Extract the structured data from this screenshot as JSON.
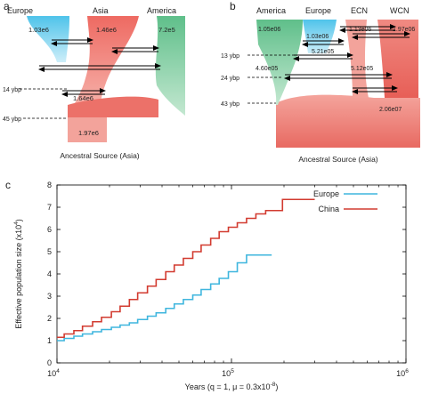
{
  "panels": {
    "a": {
      "letter": "a",
      "populations": [
        "Europe",
        "Asia",
        "America"
      ],
      "sizes": [
        "1.03e6",
        "1.46e6",
        "7.2e5",
        "1.64e6",
        "1.97e6"
      ],
      "times": [
        "14 ybp",
        "45 ybp"
      ],
      "source": "Ancestral Source (Asia)"
    },
    "b": {
      "letter": "b",
      "populations": [
        "America",
        "Europe",
        "ECN",
        "WCN"
      ],
      "sizes": [
        "1.05e06",
        "1.03e06",
        "1.13e06",
        "1.97e06",
        "5.21e05",
        "4.60e05",
        "5.12e05",
        "2.06e07"
      ],
      "times": [
        "13 ybp",
        "24 ybp",
        "43 ybp"
      ],
      "source": "Ancestral Source (Asia)"
    },
    "c": {
      "letter": "c"
    }
  },
  "colors": {
    "europe": "#5bc8ea",
    "asia": "#ef6b63",
    "america": "#5fbf8a",
    "china_line": "#d23b30",
    "europe_line": "#3fb6de"
  },
  "chart_data": {
    "type": "line",
    "title": "",
    "xlabel": "Years (q = 1, μ = 0.3x10",
    "xlabel_sup": "-8",
    "xlabel_tail": ")",
    "ylabel": "Effective population size (x10",
    "ylabel_sup": "4",
    "ylabel_tail": ")",
    "x_scale": "log",
    "xlim": [
      10000,
      1000000
    ],
    "ylim": [
      0,
      8
    ],
    "x_ticks": [
      {
        "value": 10000,
        "base": "10",
        "exp": "4"
      },
      {
        "value": 100000,
        "base": "10",
        "exp": "5"
      },
      {
        "value": 1000000,
        "base": "10",
        "exp": "6"
      }
    ],
    "y_ticks": [
      0,
      1,
      2,
      3,
      4,
      5,
      6,
      7,
      8
    ],
    "legend_position": "top-right",
    "series": [
      {
        "name": "Europe",
        "color": "#3fb6de",
        "step": true,
        "x": [
          10000,
          11000,
          12500,
          14000,
          16000,
          18000,
          20500,
          23000,
          26000,
          29000,
          33000,
          37000,
          42000,
          47000,
          53000,
          60000,
          67000,
          76000,
          85000,
          96000,
          108000,
          122000,
          170000
        ],
        "y": [
          1.0,
          1.1,
          1.2,
          1.3,
          1.4,
          1.5,
          1.6,
          1.7,
          1.8,
          1.95,
          2.1,
          2.25,
          2.45,
          2.65,
          2.85,
          3.05,
          3.3,
          3.55,
          3.8,
          4.1,
          4.5,
          4.85,
          4.85
        ]
      },
      {
        "name": "China",
        "color": "#d23b30",
        "step": true,
        "x": [
          10000,
          11000,
          12500,
          14000,
          16000,
          18000,
          20500,
          23000,
          26000,
          29000,
          33000,
          37000,
          42000,
          47000,
          53000,
          60000,
          67000,
          76000,
          85000,
          96000,
          108000,
          122000,
          138000,
          157000,
          196000,
          300000
        ],
        "y": [
          1.15,
          1.3,
          1.45,
          1.65,
          1.85,
          2.05,
          2.3,
          2.55,
          2.85,
          3.15,
          3.45,
          3.75,
          4.1,
          4.4,
          4.7,
          5.0,
          5.3,
          5.6,
          5.9,
          6.1,
          6.3,
          6.5,
          6.7,
          6.85,
          7.35,
          7.35
        ]
      }
    ]
  }
}
